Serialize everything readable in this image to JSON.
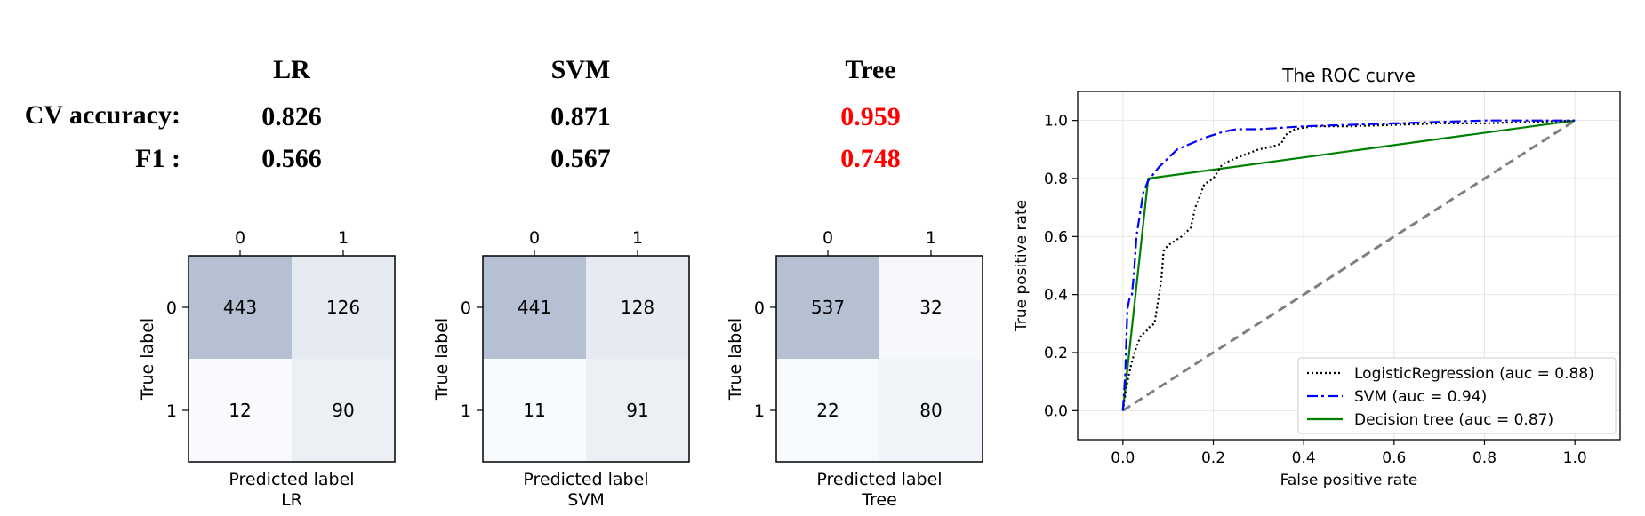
{
  "table": {
    "models": [
      "LR",
      "SVM",
      "Tree"
    ],
    "row_labels": {
      "cv": "CV accuracy:",
      "f1": "F1 :"
    },
    "cv_accuracy": [
      "0.826",
      "0.871",
      "0.959"
    ],
    "f1": [
      "0.566",
      "0.567",
      "0.748"
    ],
    "best_color": "#ff0000",
    "normal_color": "#000000",
    "best_index": 2
  },
  "chart_data": [
    {
      "type": "heatmap",
      "title": "LR",
      "xlabel": "Predicted label",
      "ylabel": "True label",
      "x_ticks": [
        "0",
        "1"
      ],
      "y_ticks": [
        "0",
        "1"
      ],
      "values": [
        [
          443,
          126
        ],
        [
          12,
          90
        ]
      ]
    },
    {
      "type": "heatmap",
      "title": "SVM",
      "xlabel": "Predicted label",
      "ylabel": "True label",
      "x_ticks": [
        "0",
        "1"
      ],
      "y_ticks": [
        "0",
        "1"
      ],
      "values": [
        [
          441,
          128
        ],
        [
          11,
          91
        ]
      ]
    },
    {
      "type": "heatmap",
      "title": "Tree",
      "xlabel": "Predicted label",
      "ylabel": "True label",
      "x_ticks": [
        "0",
        "1"
      ],
      "y_ticks": [
        "0",
        "1"
      ],
      "values": [
        [
          537,
          32
        ],
        [
          22,
          80
        ]
      ]
    },
    {
      "type": "line",
      "title": "The ROC curve",
      "xlabel": "False positive rate",
      "ylabel": "True positive rate",
      "xlim": [
        -0.1,
        1.1
      ],
      "ylim": [
        -0.1,
        1.1
      ],
      "x_ticks": [
        0.0,
        0.2,
        0.4,
        0.6,
        0.8,
        1.0
      ],
      "y_ticks": [
        0.0,
        0.2,
        0.4,
        0.6,
        0.8,
        1.0
      ],
      "grid": true,
      "legend_position": "lower right",
      "series": [
        {
          "name": "LogisticRegression (auc = 0.88)",
          "color": "#000000",
          "style": "dotted",
          "x": [
            0.0,
            0.01,
            0.02,
            0.03,
            0.04,
            0.05,
            0.06,
            0.07,
            0.08,
            0.085,
            0.09,
            0.1,
            0.11,
            0.13,
            0.15,
            0.16,
            0.17,
            0.18,
            0.2,
            0.22,
            0.25,
            0.3,
            0.33,
            0.35,
            0.36,
            0.38,
            0.42,
            0.5,
            0.6,
            0.7,
            0.8,
            0.9,
            1.0
          ],
          "y": [
            0.0,
            0.1,
            0.17,
            0.22,
            0.26,
            0.27,
            0.29,
            0.3,
            0.4,
            0.45,
            0.55,
            0.57,
            0.58,
            0.6,
            0.63,
            0.7,
            0.74,
            0.78,
            0.8,
            0.85,
            0.87,
            0.9,
            0.91,
            0.92,
            0.95,
            0.97,
            0.98,
            0.98,
            0.985,
            0.99,
            0.99,
            0.995,
            1.0
          ]
        },
        {
          "name": "SVM (auc = 0.94)",
          "color": "#0000ff",
          "style": "dashdot",
          "x": [
            0.0,
            0.005,
            0.01,
            0.015,
            0.02,
            0.025,
            0.03,
            0.035,
            0.04,
            0.045,
            0.05,
            0.055,
            0.06,
            0.07,
            0.08,
            0.1,
            0.12,
            0.15,
            0.18,
            0.22,
            0.25,
            0.3,
            0.4,
            0.6,
            0.8,
            1.0
          ],
          "y": [
            0.0,
            0.12,
            0.35,
            0.39,
            0.4,
            0.48,
            0.6,
            0.65,
            0.7,
            0.75,
            0.77,
            0.79,
            0.8,
            0.82,
            0.84,
            0.87,
            0.9,
            0.92,
            0.94,
            0.96,
            0.97,
            0.97,
            0.98,
            0.99,
            1.0,
            1.0
          ]
        },
        {
          "name": "Decision tree (auc = 0.87)",
          "color": "#008000",
          "style": "solid",
          "x": [
            0.0,
            0.056,
            1.0
          ],
          "y": [
            0.0,
            0.8,
            1.0
          ]
        },
        {
          "color": "#808080",
          "style": "dashed",
          "x": [
            0.0,
            1.0
          ],
          "y": [
            0.0,
            1.0
          ]
        }
      ]
    }
  ]
}
